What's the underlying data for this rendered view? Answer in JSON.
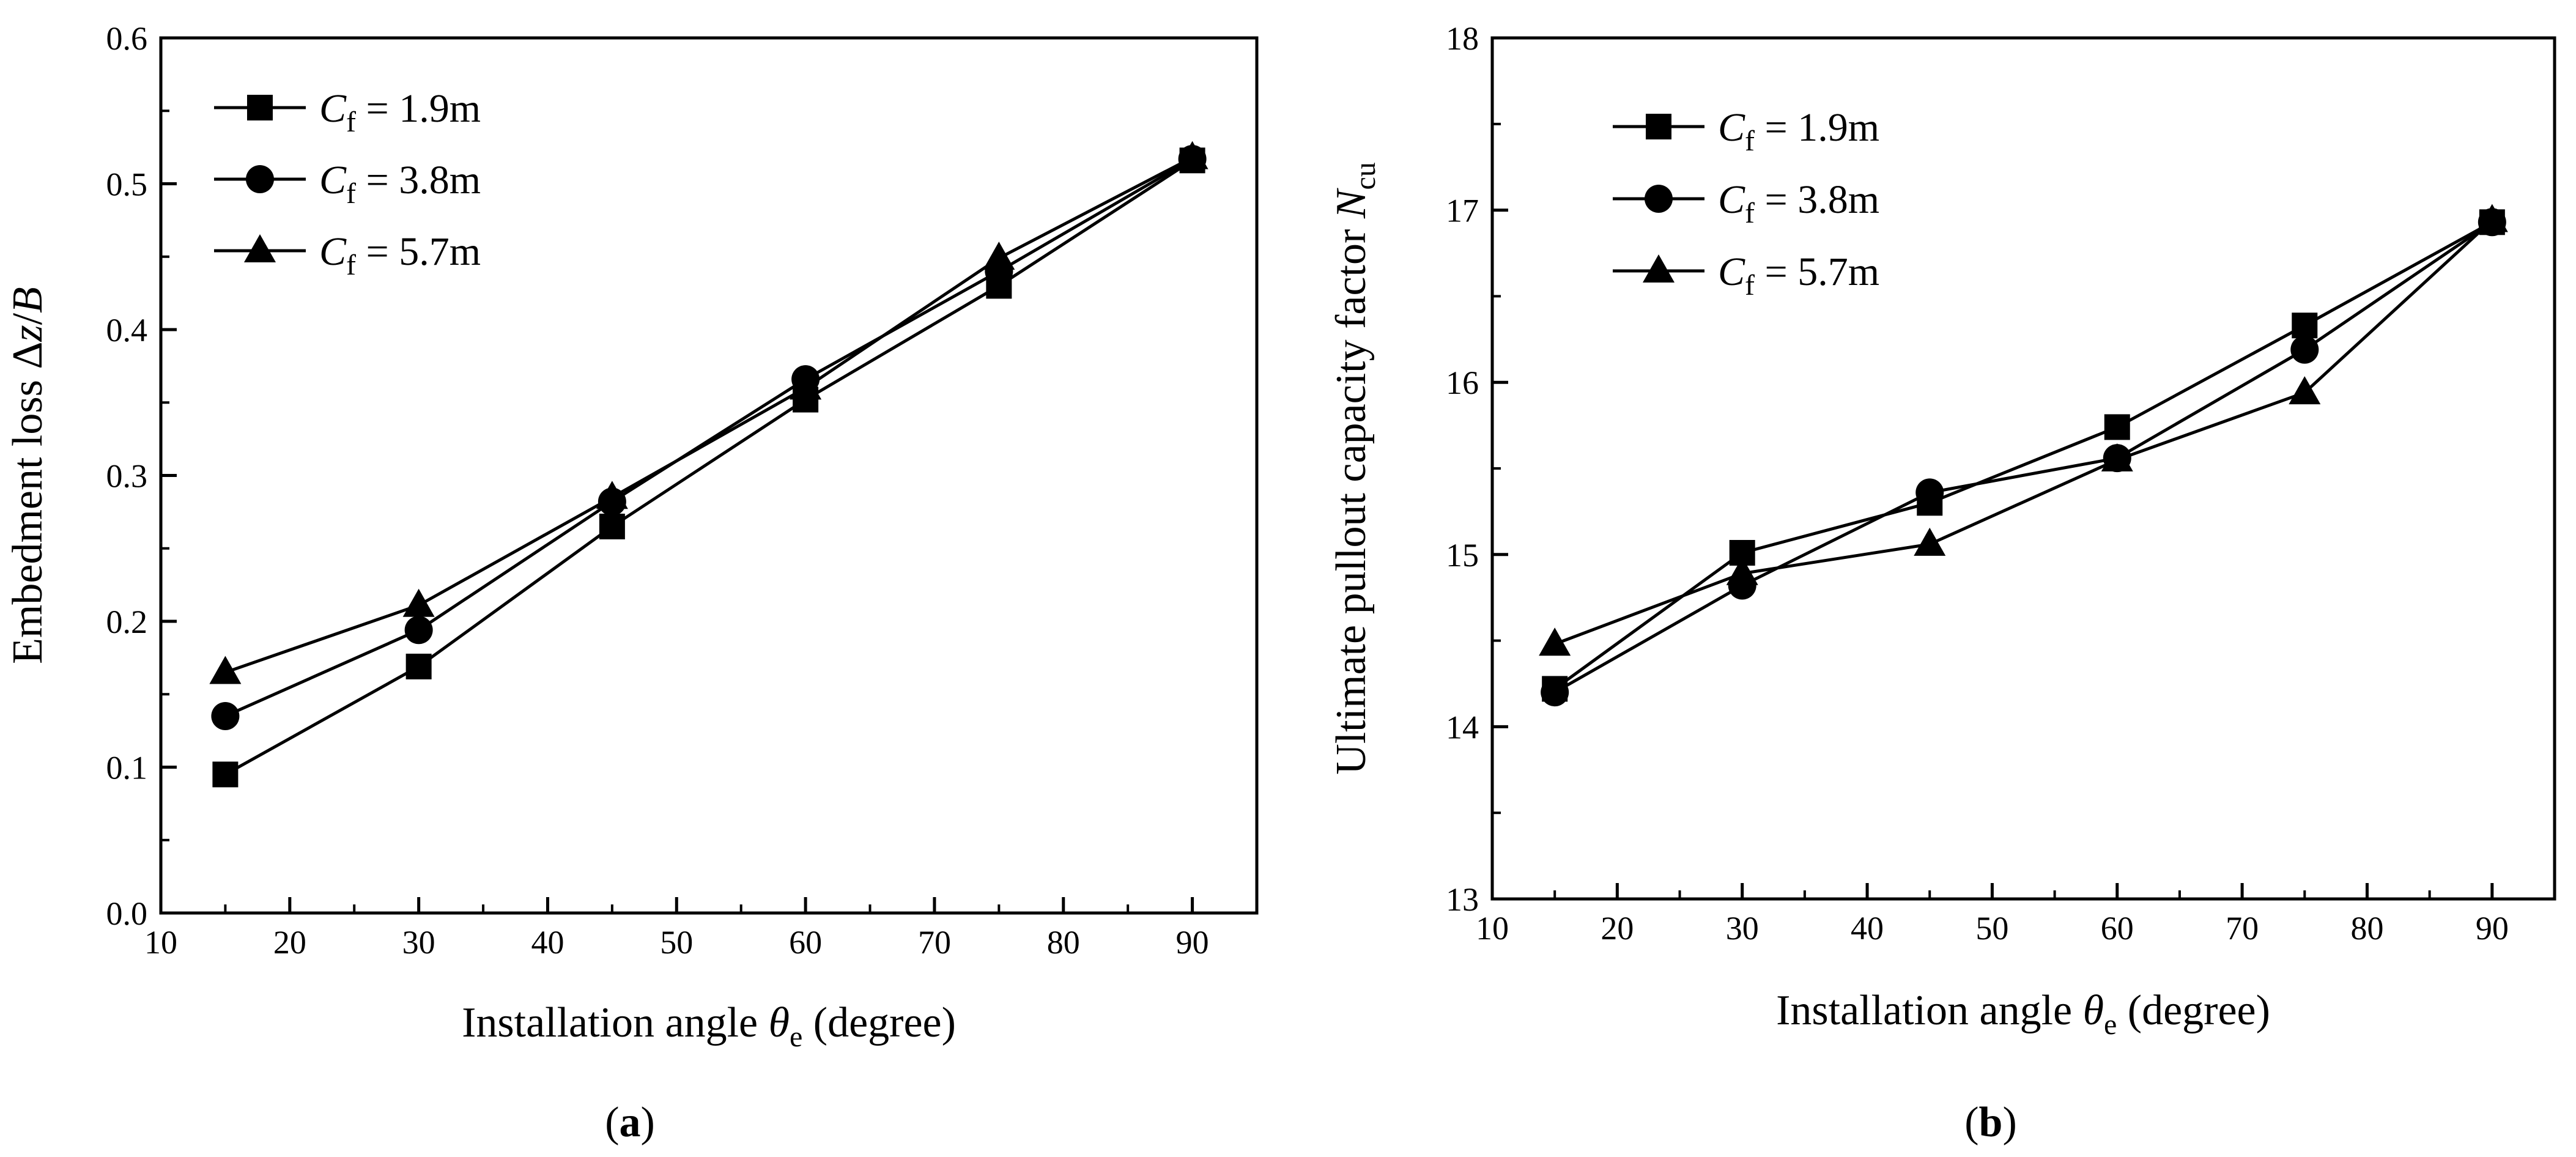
{
  "chart_data": [
    {
      "type": "line",
      "panel_label": "a",
      "xlabel": {
        "prefix": "Installation angle ",
        "symbol": "θ",
        "subscript": "e",
        "suffix": " (degree)"
      },
      "ylabel": {
        "prefix": "Embedment loss Δ",
        "var1": "z",
        "slash": "/",
        "var2": "B"
      },
      "xlim": [
        10,
        95
      ],
      "ylim": [
        0.0,
        0.6
      ],
      "xticks": [
        10,
        20,
        30,
        40,
        50,
        60,
        70,
        80,
        90
      ],
      "yticks": [
        0.0,
        0.1,
        0.2,
        0.3,
        0.4,
        0.5,
        0.6
      ],
      "xtick_labels": [
        "10",
        "20",
        "30",
        "40",
        "50",
        "60",
        "70",
        "80",
        "90"
      ],
      "ytick_labels": [
        "0.0",
        "0.1",
        "0.2",
        "0.3",
        "0.4",
        "0.5",
        "0.6"
      ],
      "legend_position": "top-left",
      "x": [
        15,
        30,
        45,
        60,
        75,
        90
      ],
      "series": [
        {
          "name": "C_f = 1.9m",
          "var": "C",
          "sub": "f",
          "value": " = 1.9m",
          "marker": "square",
          "values": [
            0.095,
            0.169,
            0.265,
            0.352,
            0.43,
            0.516
          ]
        },
        {
          "name": "C_f = 3.8m",
          "var": "C",
          "sub": "f",
          "value": " = 3.8m",
          "marker": "circle",
          "values": [
            0.135,
            0.194,
            0.282,
            0.366,
            0.44,
            0.517
          ]
        },
        {
          "name": "C_f = 5.7m",
          "var": "C",
          "sub": "f",
          "value": " = 5.7m",
          "marker": "triangle",
          "values": [
            0.165,
            0.211,
            0.285,
            0.36,
            0.449,
            0.518
          ]
        }
      ]
    },
    {
      "type": "line",
      "panel_label": "b",
      "xlabel": {
        "prefix": "Installation angle ",
        "symbol": "θ",
        "subscript": "e",
        "suffix": " (degree)"
      },
      "ylabel": {
        "prefix": "Ultimate pullout capacity factor ",
        "var": "N",
        "subscript": "cu"
      },
      "xlim": [
        10,
        95
      ],
      "ylim": [
        13,
        18
      ],
      "xticks": [
        10,
        20,
        30,
        40,
        50,
        60,
        70,
        80,
        90
      ],
      "yticks": [
        13,
        14,
        15,
        16,
        17,
        18
      ],
      "xtick_labels": [
        "10",
        "20",
        "30",
        "40",
        "50",
        "60",
        "70",
        "80",
        "90"
      ],
      "ytick_labels": [
        "13",
        "14",
        "15",
        "16",
        "17",
        "18"
      ],
      "legend_position": "top-left",
      "x": [
        15,
        30,
        45,
        60,
        75,
        90
      ],
      "series": [
        {
          "name": "C_f = 1.9m",
          "var": "C",
          "sub": "f",
          "value": " = 1.9m",
          "marker": "square",
          "values": [
            14.22,
            15.01,
            15.3,
            15.74,
            16.33,
            16.93
          ]
        },
        {
          "name": "C_f = 3.8m",
          "var": "C",
          "sub": "f",
          "value": " = 3.8m",
          "marker": "circle",
          "values": [
            14.2,
            14.82,
            15.36,
            15.56,
            16.19,
            16.93
          ]
        },
        {
          "name": "C_f = 5.7m",
          "var": "C",
          "sub": "f",
          "value": " = 5.7m",
          "marker": "triangle",
          "values": [
            14.48,
            14.89,
            15.06,
            15.55,
            15.94,
            16.94
          ]
        }
      ]
    }
  ]
}
